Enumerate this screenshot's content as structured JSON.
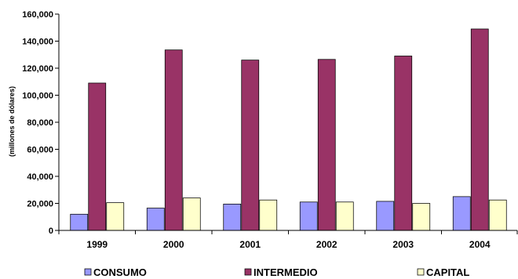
{
  "chart_data": {
    "type": "bar",
    "title": "",
    "xlabel": "",
    "ylabel": "(millones de dólares)",
    "ylim": [
      0,
      160000
    ],
    "yticks": [
      0,
      20000,
      40000,
      60000,
      80000,
      100000,
      120000,
      140000,
      160000
    ],
    "ytick_labels": [
      "0",
      "20,000",
      "40,000",
      "60,000",
      "80,000",
      "100,000",
      "120,000",
      "140,000",
      "160,000"
    ],
    "categories": [
      "1999",
      "2000",
      "2001",
      "2002",
      "2003",
      "2004"
    ],
    "series": [
      {
        "name": "CONSUMO",
        "color": "#9999ff",
        "values": [
          12000,
          16500,
          19500,
          21000,
          21500,
          25000
        ]
      },
      {
        "name": "INTERMEDIO",
        "color": "#993366",
        "values": [
          109000,
          133500,
          126000,
          126500,
          129000,
          149000
        ]
      },
      {
        "name": "CAPITAL",
        "color": "#ffffcc",
        "values": [
          20500,
          24000,
          22500,
          21000,
          20000,
          22500
        ]
      }
    ],
    "grid": false,
    "legend_position": "bottom"
  }
}
